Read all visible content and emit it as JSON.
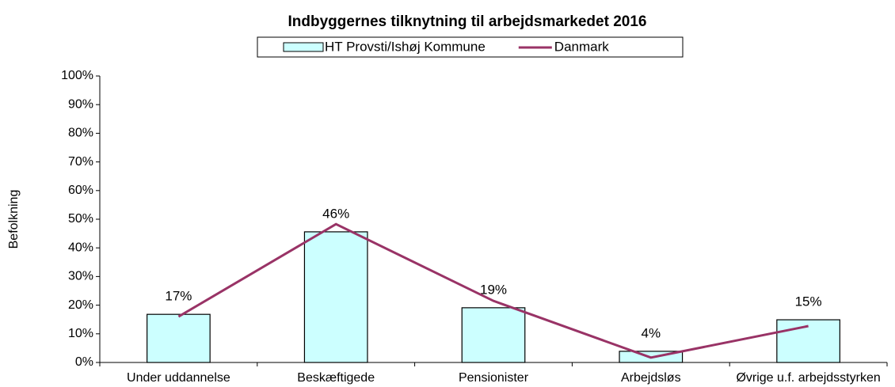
{
  "chart_data": {
    "type": "bar",
    "title": "Indbyggernes tilknytning til arbejdsmarkedet 2016",
    "ylabel": "Befolkning",
    "categories": [
      "Under uddannelse",
      "Beskæftigede",
      "Pensionister",
      "Arbejdsløs",
      "Øvrige u.f. arbejdsstyrken"
    ],
    "series": [
      {
        "name": "HT Provsti/Ishøj Kommune",
        "type": "bar",
        "color": "#ccffff",
        "values": [
          16.8,
          45.6,
          19.1,
          3.9,
          14.9
        ],
        "value_labels": [
          "17%",
          "46%",
          "19%",
          "4%",
          "15%"
        ]
      },
      {
        "name": "Danmark",
        "type": "line",
        "color": "#993366",
        "values": [
          16.0,
          48.3,
          21.5,
          1.7,
          12.7
        ]
      }
    ],
    "ylim": [
      0,
      100
    ],
    "yticks": [
      {
        "value": 0,
        "label": "0%"
      },
      {
        "value": 10,
        "label": "10%"
      },
      {
        "value": 20,
        "label": "20%"
      },
      {
        "value": 30,
        "label": "30%"
      },
      {
        "value": 40,
        "label": "40%"
      },
      {
        "value": 50,
        "label": "50%"
      },
      {
        "value": 60,
        "label": "60%"
      },
      {
        "value": 70,
        "label": "70%"
      },
      {
        "value": 80,
        "label": "80%"
      },
      {
        "value": 90,
        "label": "90%"
      },
      {
        "value": 100,
        "label": "100%"
      }
    ],
    "grid": false,
    "legend": "top"
  }
}
